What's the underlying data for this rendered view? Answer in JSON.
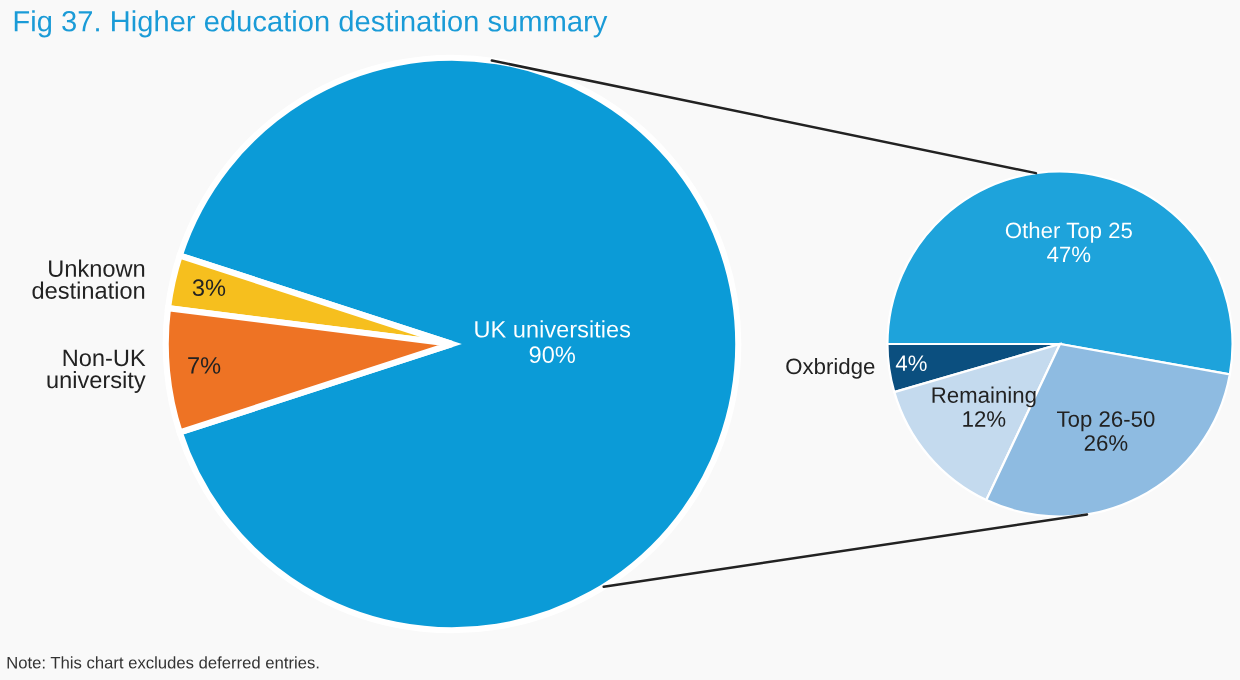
{
  "chart_data": [
    {
      "type": "pie",
      "title": "Fig 37. Higher education destination summary",
      "annotations": [
        "Note: This chart excludes deferred entries."
      ],
      "categories": [
        "UK universities",
        "Unknown destination",
        "Non-UK university"
      ],
      "values": [
        90,
        3,
        7
      ],
      "value_labels": [
        "90%",
        "3%",
        "7%"
      ],
      "colors": [
        "#0b9bd7",
        "#f6bf1e",
        "#ee7324"
      ]
    },
    {
      "type": "pie",
      "categories": [
        "Other Top 25",
        "Oxbridge",
        "Remaining",
        "Top 26-50"
      ],
      "values": [
        47,
        4,
        12,
        26
      ],
      "value_labels": [
        "47%",
        "4%",
        "12%",
        "26%"
      ],
      "colors": [
        "#1ea3db",
        "#0b4f7f",
        "#c4daee",
        "#8ebbe1"
      ]
    }
  ]
}
